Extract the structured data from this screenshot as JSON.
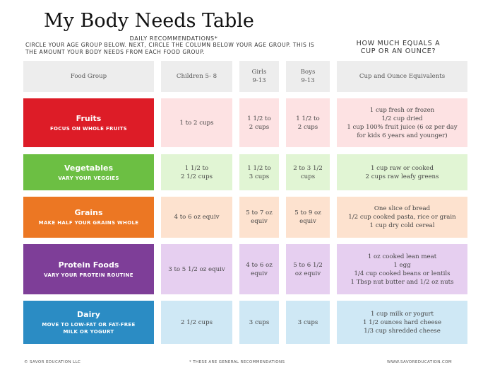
{
  "title": "My Body Needs Table",
  "subheader": {
    "daily": "DAILY RECOMMENDATIONS*",
    "instructions": "CIRCLE YOUR AGE GROUP BELOW. NEXT, CIRCLE THE COLUMN BELOW YOUR AGE GROUP. THIS IS THE AMOUNT YOUR BODY NEEDS FROM EACH FOOD GROUP.",
    "how_much": "HOW MUCH EQUALS A\nCUP OR AN OUNCE?"
  },
  "headers": {
    "food_group": "Food Group",
    "children": "Children 5- 8",
    "girls": "Girls\n9-13",
    "boys": "Boys\n9-13",
    "equivalents": "Cup and Ounce Equivalents"
  },
  "rows": [
    {
      "name": "Fruits",
      "sub": "FOCUS ON WHOLE FRUITS",
      "children": "1 to 2 cups",
      "girls": "1 1/2 to\n2 cups",
      "boys": "1 1/2 to\n2 cups",
      "equivalents": "1 cup fresh or frozen\n1/2 cup dried\n1 cup 100% fruit juice (6 oz per day\nfor kids 6 years and younger)"
    },
    {
      "name": "Vegetables",
      "sub": "VARY YOUR VEGGIES",
      "children": "1 1/2 to\n2 1/2 cups",
      "girls": "1 1/2 to\n3 cups",
      "boys": "2 to 3 1/2\ncups",
      "equivalents": "1 cup raw or cooked\n2 cups raw leafy greens"
    },
    {
      "name": "Grains",
      "sub": "MAKE HALF YOUR GRAINS WHOLE",
      "children": "4 to 6 oz equiv",
      "girls": "5 to 7 oz\nequiv",
      "boys": "5 to 9 oz\nequiv",
      "equivalents": "One slice of bread\n1/2 cup cooked pasta, rice or grain\n1 cup dry cold cereal"
    },
    {
      "name": "Protein Foods",
      "sub": "VARY YOUR PROTEIN ROUTINE",
      "children": "3 to 5 1/2 oz equiv",
      "girls": "4 to 6 oz\nequiv",
      "boys": "5 to 6 1/2\noz equiv",
      "equivalents": "1 oz cooked lean meat\n1 egg\n1/4 cup cooked beans or lentils\n1 Tbsp nut butter and 1/2 oz nuts"
    },
    {
      "name": "Dairy",
      "sub": "MOVE TO LOW-FAT OR FAT-FREE\nMILK OR YOGURT",
      "children": "2 1/2 cups",
      "girls": "3 cups",
      "boys": "3 cups",
      "equivalents": "1 cup milk or yogurt\n1 1/2 ounces hard cheese\n1/3 cup shredded cheese"
    }
  ],
  "colors": {
    "fruits": "#dd1c27",
    "fruits_light": "#fde2e3",
    "vegetables": "#6cbf43",
    "vegetables_light": "#e1f5d4",
    "grains": "#ec7723",
    "grains_light": "#fde2cf",
    "protein": "#7e3e98",
    "protein_light": "#e6cff0",
    "dairy": "#2b8cc4",
    "dairy_light": "#cfe8f5",
    "header": "#ededed"
  },
  "footer": {
    "left": "© SAVOR EDUCATION LLC",
    "middle": "*  THESE ARE GENERAL RECOMMENDATIONS",
    "right": "WWW.SAVOREDUCATION.COM"
  }
}
